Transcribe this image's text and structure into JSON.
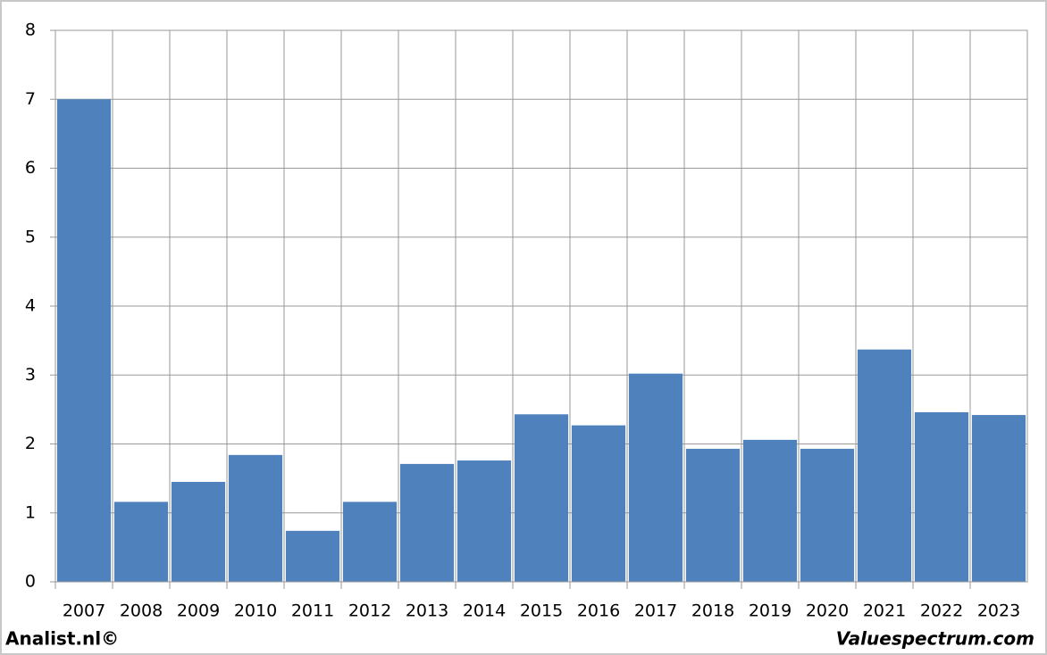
{
  "chart_data": {
    "type": "bar",
    "categories": [
      "2007",
      "2008",
      "2009",
      "2010",
      "2011",
      "2012",
      "2013",
      "2014",
      "2015",
      "2016",
      "2017",
      "2018",
      "2019",
      "2020",
      "2021",
      "2022",
      "2023"
    ],
    "values": [
      7.0,
      1.16,
      1.45,
      1.84,
      0.74,
      1.16,
      1.71,
      1.76,
      2.43,
      2.27,
      3.02,
      1.93,
      2.06,
      1.93,
      3.37,
      2.46,
      2.42
    ],
    "color": "#4f81bd",
    "ylim": [
      0,
      8
    ],
    "yticks": [
      0,
      1,
      2,
      3,
      4,
      5,
      6,
      7,
      8
    ],
    "grid": true
  },
  "footer": {
    "left": "Analist.nl©",
    "right": "Valuespectrum.com"
  }
}
